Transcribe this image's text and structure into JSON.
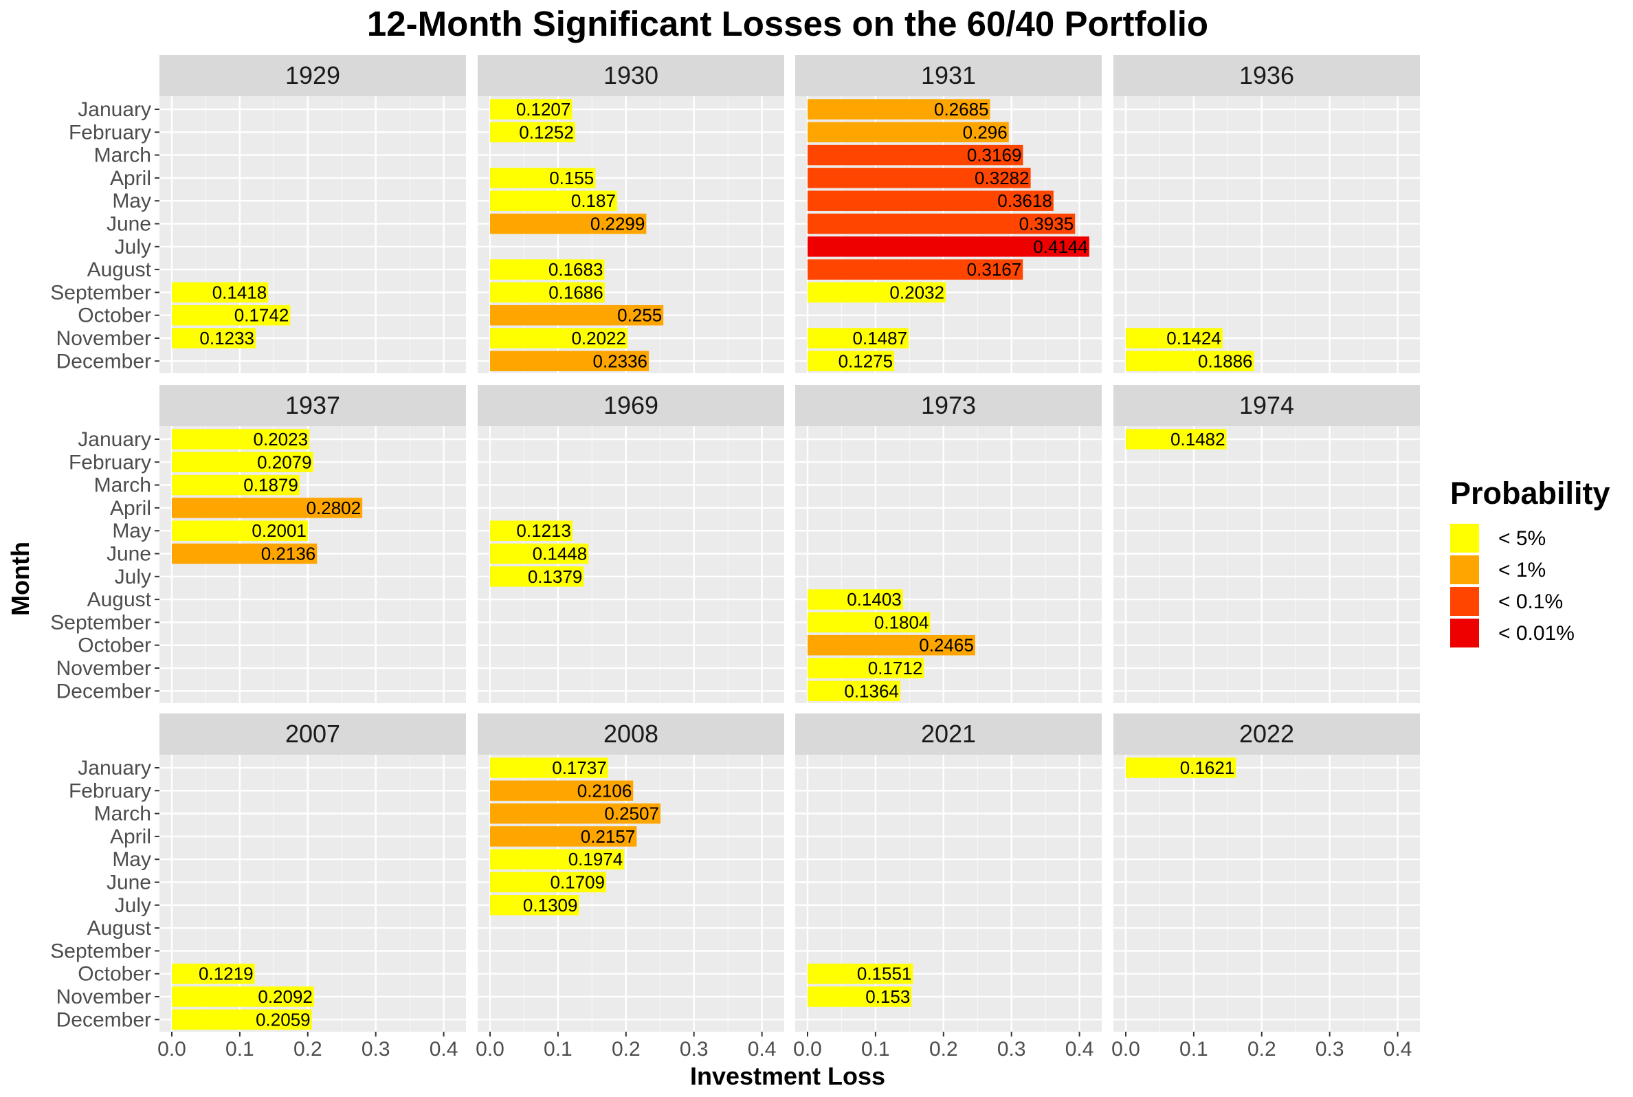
{
  "chart_data": {
    "type": "bar",
    "orientation": "horizontal",
    "title": "12-Month Significant Losses on the 60/40 Portfolio",
    "xlabel": "Investment Loss",
    "ylabel": "Month",
    "xlim": [
      0,
      0.42
    ],
    "x_ticks": [
      "0.0",
      "0.1",
      "0.2",
      "0.3",
      "0.4"
    ],
    "x_tick_values": [
      0,
      0.1,
      0.2,
      0.3,
      0.4
    ],
    "months": [
      "January",
      "February",
      "March",
      "April",
      "May",
      "June",
      "July",
      "August",
      "September",
      "October",
      "November",
      "December"
    ],
    "legend": {
      "title": "Probability",
      "placement": "right",
      "items": [
        {
          "label": "< 5%",
          "color": "#FFFF00"
        },
        {
          "label": "< 1%",
          "color": "#FFA500"
        },
        {
          "label": "< 0.1%",
          "color": "#FF4500"
        },
        {
          "label": "< 0.01%",
          "color": "#EE0000"
        }
      ]
    },
    "panels": [
      {
        "year": "1929",
        "bars": [
          {
            "month": "September",
            "value": 0.1418,
            "label": "0.1418",
            "level": 0
          },
          {
            "month": "October",
            "value": 0.1742,
            "label": "0.1742",
            "level": 0
          },
          {
            "month": "November",
            "value": 0.1233,
            "label": "0.1233",
            "level": 0
          }
        ]
      },
      {
        "year": "1930",
        "bars": [
          {
            "month": "January",
            "value": 0.1207,
            "label": "0.1207",
            "level": 0
          },
          {
            "month": "February",
            "value": 0.1252,
            "label": "0.1252",
            "level": 0
          },
          {
            "month": "April",
            "value": 0.155,
            "label": "0.155",
            "level": 0
          },
          {
            "month": "May",
            "value": 0.187,
            "label": "0.187",
            "level": 0
          },
          {
            "month": "June",
            "value": 0.2299,
            "label": "0.2299",
            "level": 1
          },
          {
            "month": "August",
            "value": 0.1683,
            "label": "0.1683",
            "level": 0
          },
          {
            "month": "September",
            "value": 0.1686,
            "label": "0.1686",
            "level": 0
          },
          {
            "month": "October",
            "value": 0.255,
            "label": "0.255",
            "level": 1
          },
          {
            "month": "November",
            "value": 0.2022,
            "label": "0.2022",
            "level": 0
          },
          {
            "month": "December",
            "value": 0.2336,
            "label": "0.2336",
            "level": 1
          }
        ]
      },
      {
        "year": "1931",
        "bars": [
          {
            "month": "January",
            "value": 0.2685,
            "label": "0.2685",
            "level": 1
          },
          {
            "month": "February",
            "value": 0.296,
            "label": "0.296",
            "level": 1
          },
          {
            "month": "March",
            "value": 0.3169,
            "label": "0.3169",
            "level": 2
          },
          {
            "month": "April",
            "value": 0.3282,
            "label": "0.3282",
            "level": 2
          },
          {
            "month": "May",
            "value": 0.3618,
            "label": "0.3618",
            "level": 2
          },
          {
            "month": "June",
            "value": 0.3935,
            "label": "0.3935",
            "level": 2
          },
          {
            "month": "July",
            "value": 0.4144,
            "label": "0.4144",
            "level": 3
          },
          {
            "month": "August",
            "value": 0.3167,
            "label": "0.3167",
            "level": 2
          },
          {
            "month": "September",
            "value": 0.2032,
            "label": "0.2032",
            "level": 0
          },
          {
            "month": "November",
            "value": 0.1487,
            "label": "0.1487",
            "level": 0
          },
          {
            "month": "December",
            "value": 0.1275,
            "label": "0.1275",
            "level": 0
          }
        ]
      },
      {
        "year": "1936",
        "bars": [
          {
            "month": "November",
            "value": 0.1424,
            "label": "0.1424",
            "level": 0
          },
          {
            "month": "December",
            "value": 0.1886,
            "label": "0.1886",
            "level": 0
          }
        ]
      },
      {
        "year": "1937",
        "bars": [
          {
            "month": "January",
            "value": 0.2023,
            "label": "0.2023",
            "level": 0
          },
          {
            "month": "February",
            "value": 0.2079,
            "label": "0.2079",
            "level": 0
          },
          {
            "month": "March",
            "value": 0.1879,
            "label": "0.1879",
            "level": 0
          },
          {
            "month": "April",
            "value": 0.2802,
            "label": "0.2802",
            "level": 1
          },
          {
            "month": "May",
            "value": 0.2001,
            "label": "0.2001",
            "level": 0
          },
          {
            "month": "June",
            "value": 0.2136,
            "label": "0.2136",
            "level": 1
          }
        ]
      },
      {
        "year": "1969",
        "bars": [
          {
            "month": "May",
            "value": 0.1213,
            "label": "0.1213",
            "level": 0
          },
          {
            "month": "June",
            "value": 0.1448,
            "label": "0.1448",
            "level": 0
          },
          {
            "month": "July",
            "value": 0.1379,
            "label": "0.1379",
            "level": 0
          }
        ]
      },
      {
        "year": "1973",
        "bars": [
          {
            "month": "August",
            "value": 0.1403,
            "label": "0.1403",
            "level": 0
          },
          {
            "month": "September",
            "value": 0.1804,
            "label": "0.1804",
            "level": 0
          },
          {
            "month": "October",
            "value": 0.2465,
            "label": "0.2465",
            "level": 1
          },
          {
            "month": "November",
            "value": 0.1712,
            "label": "0.1712",
            "level": 0
          },
          {
            "month": "December",
            "value": 0.1364,
            "label": "0.1364",
            "level": 0
          }
        ]
      },
      {
        "year": "1974",
        "bars": [
          {
            "month": "January",
            "value": 0.1482,
            "label": "0.1482",
            "level": 0
          }
        ]
      },
      {
        "year": "2007",
        "bars": [
          {
            "month": "October",
            "value": 0.1219,
            "label": "0.1219",
            "level": 0
          },
          {
            "month": "November",
            "value": 0.2092,
            "label": "0.2092",
            "level": 0
          },
          {
            "month": "December",
            "value": 0.2059,
            "label": "0.2059",
            "level": 0
          }
        ]
      },
      {
        "year": "2008",
        "bars": [
          {
            "month": "January",
            "value": 0.1737,
            "label": "0.1737",
            "level": 0
          },
          {
            "month": "February",
            "value": 0.2106,
            "label": "0.2106",
            "level": 1
          },
          {
            "month": "March",
            "value": 0.2507,
            "label": "0.2507",
            "level": 1
          },
          {
            "month": "April",
            "value": 0.2157,
            "label": "0.2157",
            "level": 1
          },
          {
            "month": "May",
            "value": 0.1974,
            "label": "0.1974",
            "level": 0
          },
          {
            "month": "June",
            "value": 0.1709,
            "label": "0.1709",
            "level": 0
          },
          {
            "month": "July",
            "value": 0.1309,
            "label": "0.1309",
            "level": 0
          }
        ]
      },
      {
        "year": "2021",
        "bars": [
          {
            "month": "October",
            "value": 0.1551,
            "label": "0.1551",
            "level": 0
          },
          {
            "month": "November",
            "value": 0.153,
            "label": "0.153",
            "level": 0
          }
        ]
      },
      {
        "year": "2022",
        "bars": [
          {
            "month": "January",
            "value": 0.1621,
            "label": "0.1621",
            "level": 0
          }
        ]
      }
    ]
  }
}
